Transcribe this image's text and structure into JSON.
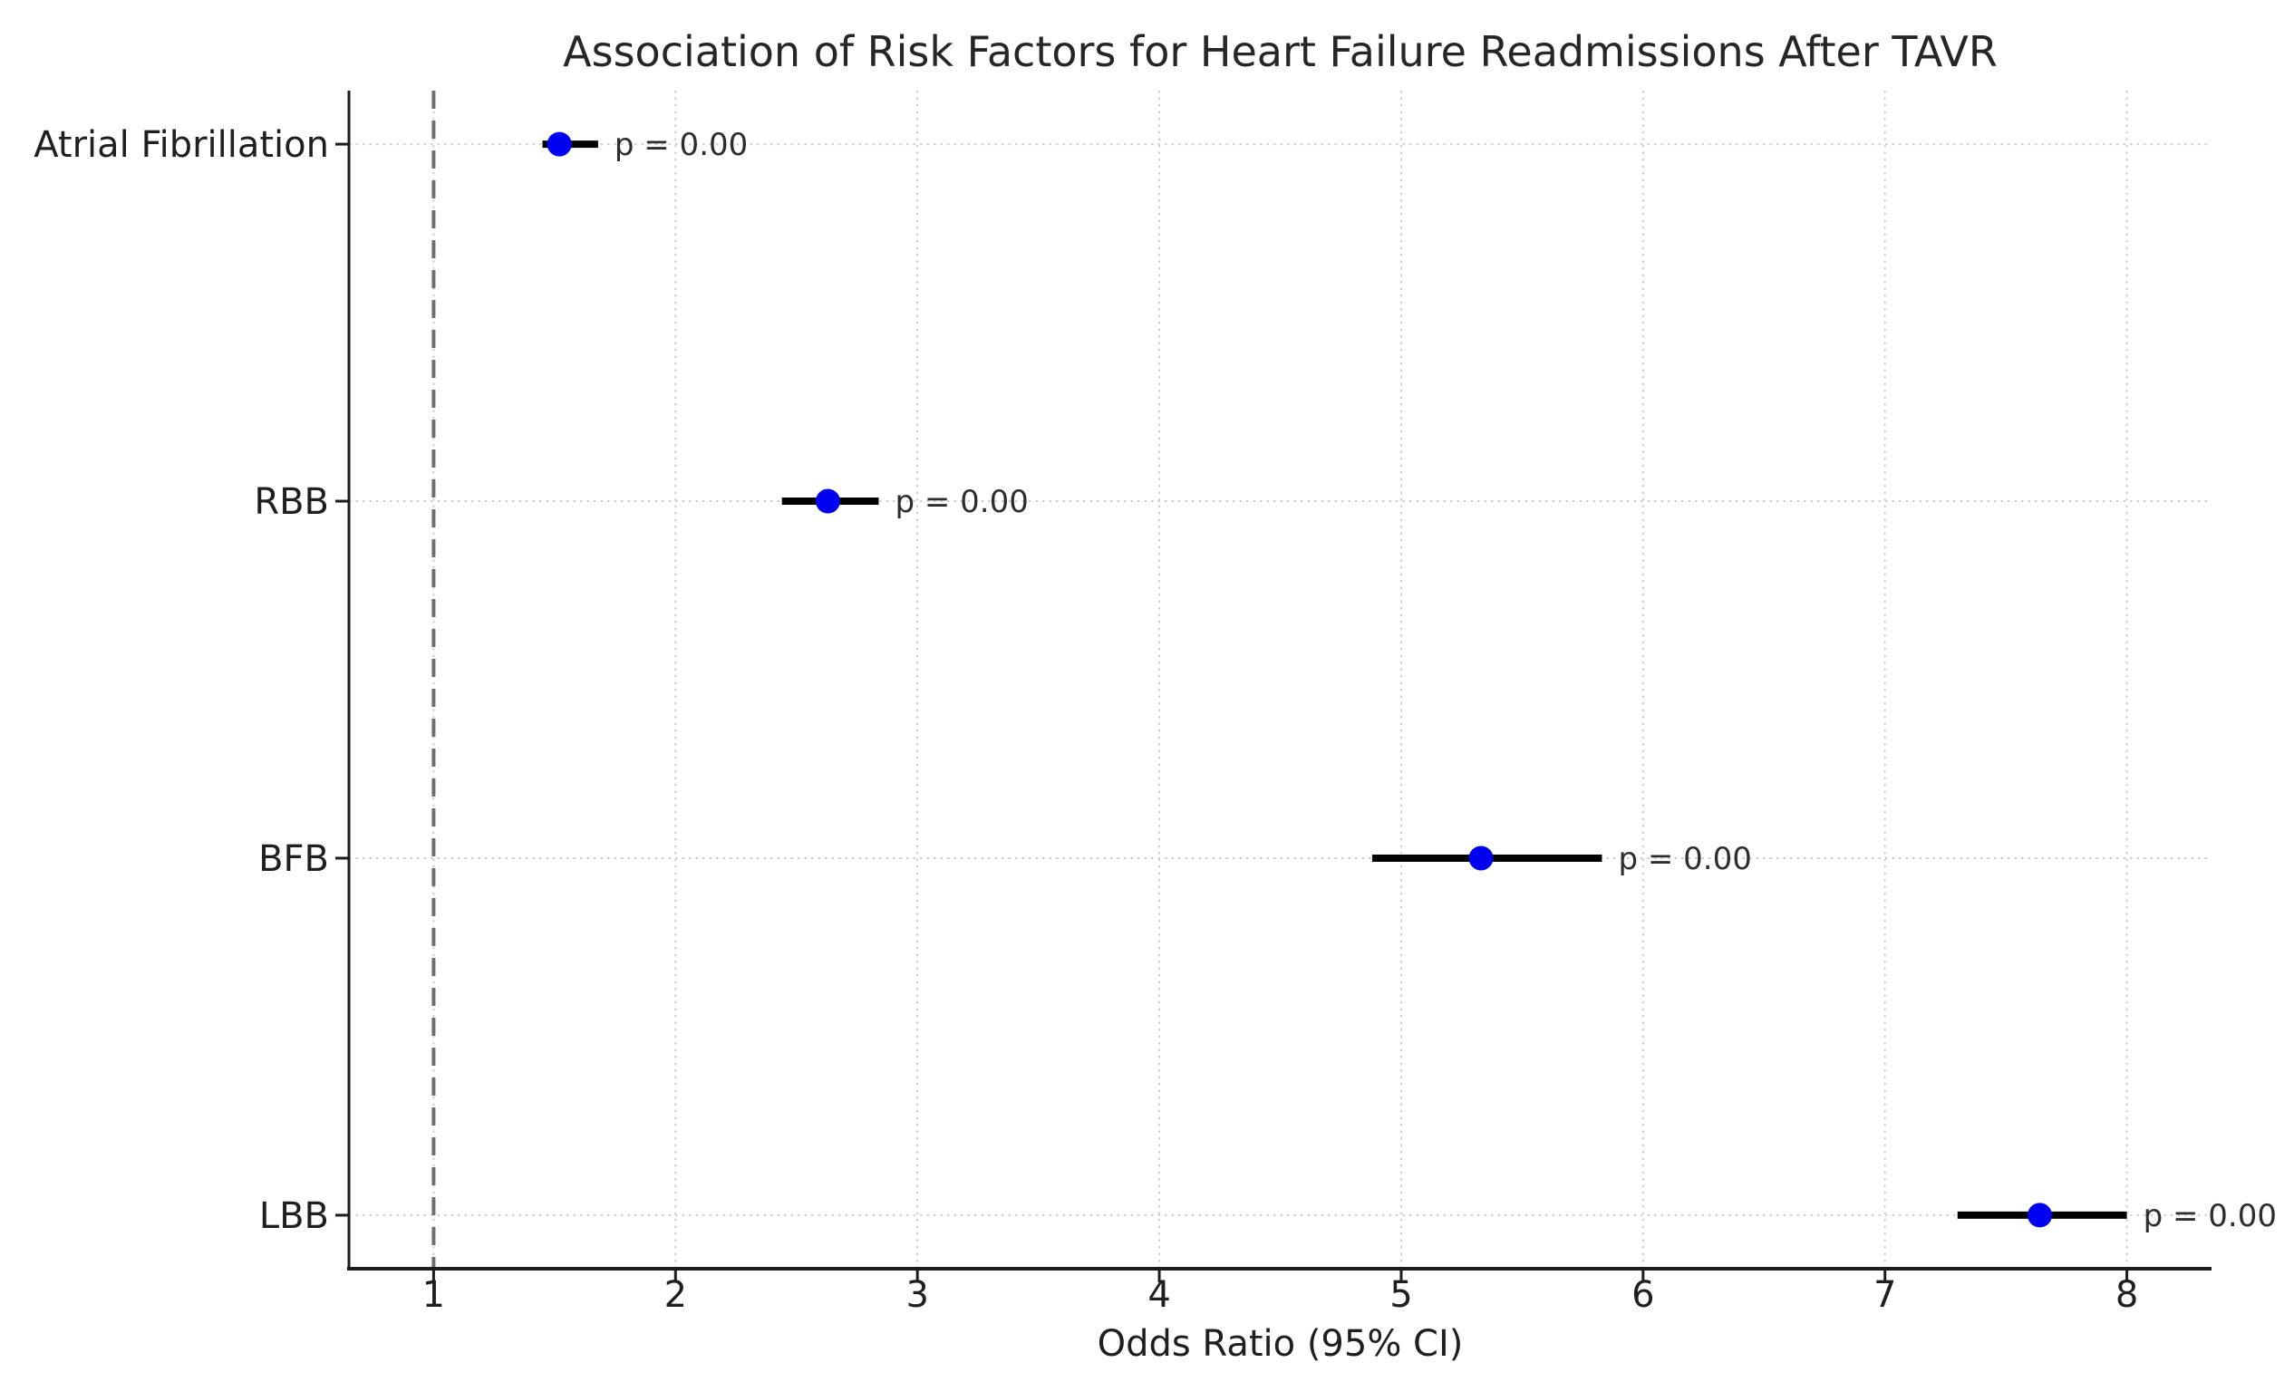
{
  "chart_data": {
    "type": "scatter",
    "subtype": "forest-plot-odds-ratio",
    "title": "Association of Risk Factors for Heart Failure Readmissions After TAVR",
    "xlabel": "Odds Ratio (95% CI)",
    "ylabel": "",
    "categories": [
      "Atrial Fibrillation",
      "RBB",
      "BFB",
      "LBB"
    ],
    "series": [
      {
        "name": "Atrial Fibrillation",
        "odds_ratio": 1.52,
        "ci_low": 1.45,
        "ci_high": 1.68,
        "p_label": "p = 0.00"
      },
      {
        "name": "RBB",
        "odds_ratio": 2.63,
        "ci_low": 2.44,
        "ci_high": 2.84,
        "p_label": "p = 0.00"
      },
      {
        "name": "BFB",
        "odds_ratio": 5.33,
        "ci_low": 4.88,
        "ci_high": 5.83,
        "p_label": "p = 0.00"
      },
      {
        "name": "LBB",
        "odds_ratio": 7.64,
        "ci_low": 7.3,
        "ci_high": 8.0,
        "p_label": "p = 0.00"
      }
    ],
    "x_ticks": [
      1,
      2,
      3,
      4,
      5,
      6,
      7,
      8
    ],
    "xlim": [
      0.65,
      8.35
    ],
    "ylim": [
      -0.15,
      3.15
    ],
    "reference_line_x": 1,
    "grid": true,
    "legend_position": "none",
    "colors": {
      "marker": "#0000f0",
      "ci_line": "#000000",
      "reference_line": "#707070",
      "grid": "#cfcfcf",
      "spine": "#1c1c1c",
      "text": "#1f1f1f",
      "p_text": "#2e2e2e",
      "background": "#ffffff"
    }
  }
}
